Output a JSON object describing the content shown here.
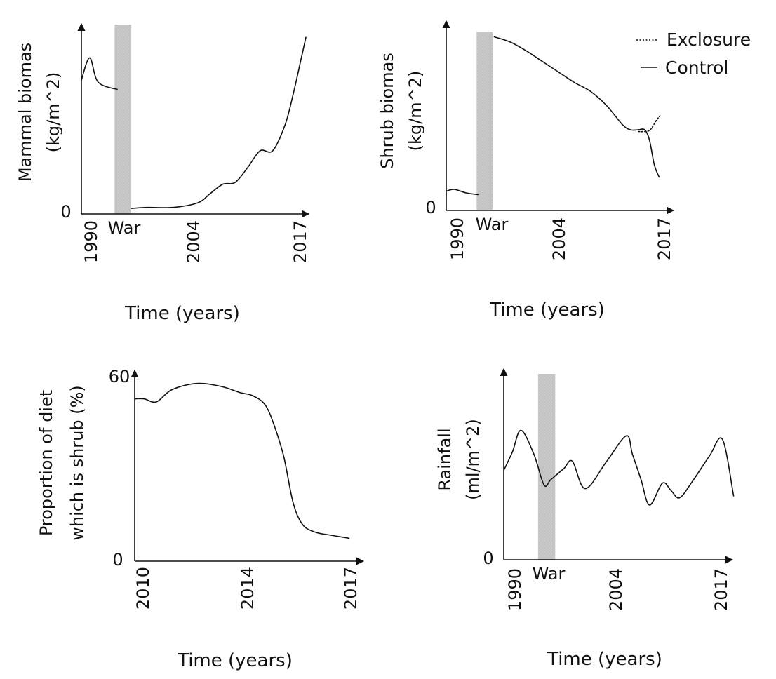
{
  "chart_data": [
    {
      "type": "line",
      "ylabel": "Mammal biomas (kg/m^2)",
      "xlabel": "Time (years)",
      "x_ticks": [
        "1990",
        "2004",
        "2017"
      ],
      "y_ticks": [
        "0"
      ],
      "xlim": [
        1990,
        2017
      ],
      "ylim": [
        0,
        100
      ],
      "shaded_band": {
        "label": "War",
        "from": 1994,
        "to": 1996,
        "color": "#c8c8c8"
      },
      "series": [
        {
          "x": [
            1990,
            1991,
            1992,
            1994.3
          ],
          "y": [
            72,
            84,
            71,
            67
          ]
        },
        {
          "x": [
            1996,
            1998,
            2001,
            2004,
            2005.5,
            2007,
            2008.5,
            2010,
            2011.5,
            2013,
            2014.5,
            2015.5,
            2016.5,
            2017
          ],
          "y": [
            3,
            3.5,
            3.5,
            6,
            11,
            16,
            17,
            25,
            34,
            34,
            48,
            65,
            85,
            95
          ]
        }
      ]
    },
    {
      "type": "line",
      "ylabel": "Shrub biomas (kg/m^2)",
      "xlabel": "Time (years)",
      "x_ticks": [
        "1990",
        "2004",
        "2017"
      ],
      "y_ticks": [
        "0"
      ],
      "xlim": [
        1990,
        2017
      ],
      "ylim": [
        0,
        100
      ],
      "shaded_band": {
        "label": "War",
        "from": 1993.8,
        "to": 1995.8,
        "color": "#c8c8c8"
      },
      "legend": {
        "position": "top-right",
        "entries": [
          "Exclosure",
          "Control"
        ]
      },
      "series": [
        {
          "name": "Control",
          "style": "solid",
          "x": [
            1990,
            1991,
            1992.5,
            1994
          ],
          "y": [
            11,
            12,
            10,
            9
          ]
        },
        {
          "name": "Control",
          "style": "solid",
          "x": [
            1996,
            1998,
            2000,
            2002,
            2004,
            2006,
            2008,
            2010,
            2012,
            2013,
            2014,
            2014.8,
            2015.4,
            2016,
            2016.6
          ],
          "y": [
            99,
            96,
            91,
            85,
            79,
            73,
            68,
            60,
            49,
            46,
            46,
            46,
            40,
            26,
            19
          ]
        },
        {
          "name": "Exclosure",
          "style": "dotted",
          "x": [
            2014,
            2014.8,
            2015.5,
            2016.2,
            2016.7
          ],
          "y": [
            45,
            45,
            46,
            51,
            54
          ]
        }
      ]
    },
    {
      "type": "line",
      "ylabel": "Proportion of diet which is shrub (%)",
      "xlabel": "Time (years)",
      "x_ticks": [
        "2010",
        "2014",
        "2017"
      ],
      "y_ticks": [
        "60",
        "0"
      ],
      "xlim": [
        2010,
        2017
      ],
      "ylim": [
        0,
        60
      ],
      "series": [
        {
          "x": [
            2010,
            2010.3,
            2010.7,
            2011.2,
            2012,
            2012.8,
            2013.4,
            2013.8,
            2014.2,
            2014.5,
            2014.8,
            2015.1,
            2015.4,
            2015.8,
            2016.3,
            2016.9
          ],
          "y": [
            53,
            53,
            52,
            56,
            58,
            57,
            55,
            54,
            51,
            44,
            34,
            19,
            12,
            9.5,
            8.5,
            7.5
          ]
        }
      ]
    },
    {
      "type": "line",
      "ylabel": "Rainfall (ml/m^2)",
      "xlabel": "Time (years)",
      "x_ticks": [
        "1990",
        "2004",
        "2017"
      ],
      "y_ticks": [
        "0"
      ],
      "xlim": [
        1990,
        2017
      ],
      "ylim": [
        0,
        100
      ],
      "shaded_band": {
        "label": "War",
        "from": 1994,
        "to": 1996,
        "color": "#c8c8c8"
      },
      "series": [
        {
          "x": [
            1990,
            1991,
            1992,
            1993.5,
            1994.7,
            1995.5,
            1997,
            1998,
            1999.5,
            2002,
            2004.3,
            2005,
            2006,
            2007,
            2008.5,
            2009.5,
            2010.5,
            2012,
            2014,
            2015.5,
            2016.8
          ],
          "y": [
            49,
            59,
            71,
            58,
            41,
            44,
            50,
            54,
            39,
            54,
            68,
            58,
            44,
            30,
            42,
            38,
            34,
            43,
            57,
            66,
            35
          ]
        }
      ]
    }
  ]
}
